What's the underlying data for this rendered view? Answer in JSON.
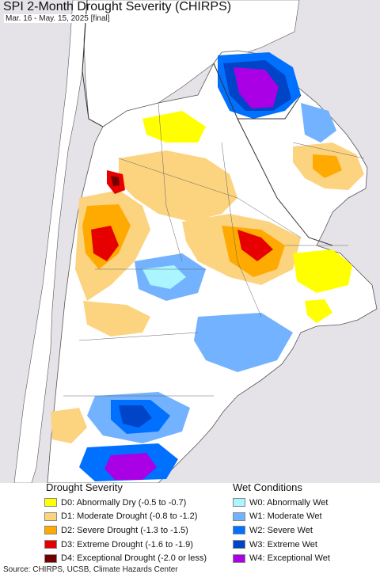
{
  "header": {
    "title": "SPI 2-Month Drought Severity (CHIRPS)",
    "subtitle": "Mar. 16 - May. 15, 2025 [final]"
  },
  "colors": {
    "ocean": "#e6e3e8",
    "land": "#ffffff",
    "border": "#555555",
    "d0": "#ffff00",
    "d1": "#fcd37f",
    "d2": "#ffaa00",
    "d3": "#e60000",
    "d4": "#730000",
    "w0": "#aaf5ff",
    "w1": "#73b2ff",
    "w2": "#0070ff",
    "w3": "#0044c8",
    "w4": "#a900e6"
  },
  "legend": {
    "drought": {
      "heading": "Drought Severity",
      "items": [
        {
          "label": "D0: Abnormally Dry (-0.5 to -0.7)",
          "color": "#ffff00"
        },
        {
          "label": "D1: Moderate Drought (-0.8 to -1.2)",
          "color": "#fcd37f"
        },
        {
          "label": "D2: Severe Drought (-1.3 to -1.5)",
          "color": "#ffaa00"
        },
        {
          "label": "D3: Extreme Drought (-1.6 to -1.9)",
          "color": "#e60000"
        },
        {
          "label": "D4: Exceptional Drought (-2.0 or less)",
          "color": "#730000"
        }
      ]
    },
    "wet": {
      "heading": "Wet Conditions",
      "items": [
        {
          "label": "W0: Abnormally Wet",
          "color": "#aaf5ff"
        },
        {
          "label": "W1: Moderate Wet",
          "color": "#73b2ff"
        },
        {
          "label": "W2: Severe Wet",
          "color": "#0070ff"
        },
        {
          "label": "W3: Extreme Wet",
          "color": "#0044c8"
        },
        {
          "label": "W4: Exceptional Wet",
          "color": "#a900e6"
        }
      ]
    }
  },
  "footer": {
    "source": "Source: CHIRPS, UCSB, Climate Hazards Center"
  }
}
